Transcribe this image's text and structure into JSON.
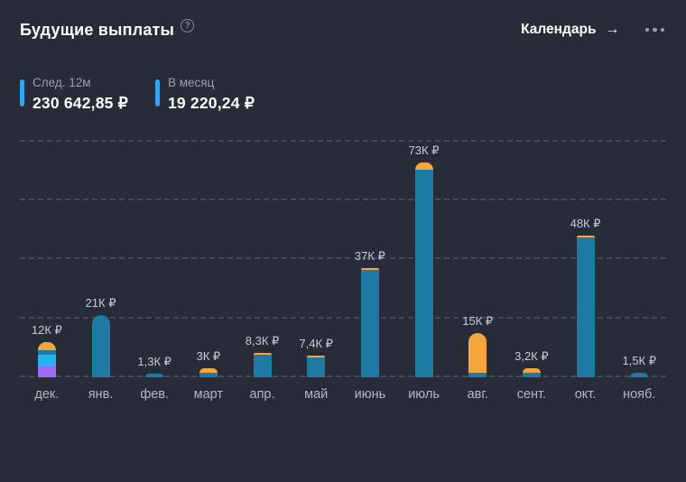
{
  "header": {
    "title": "Будущие выплаты",
    "calendar_label": "Календарь",
    "icons": {
      "help": "?",
      "arrow": "→",
      "more": "ellipsis"
    }
  },
  "stats": [
    {
      "label": "След. 12м",
      "value": "230 642,85 ₽"
    },
    {
      "label": "В месяц",
      "value": "19 220,24 ₽"
    }
  ],
  "colors": {
    "background": "#282b38",
    "stat_marker": "#38a3ea",
    "bar_teal": "#1e7aa3",
    "bar_orange": "#f7a63c",
    "bar_cyan": "#26b3f0",
    "bar_purple": "#9b6bf3",
    "gridline": "#454a58"
  },
  "chart_data": {
    "type": "bar",
    "stacked": true,
    "currency": "₽",
    "ymax": 80000,
    "grid": true,
    "gridline_values": [
      0,
      20000,
      40000,
      60000,
      80000
    ],
    "categories": [
      "дек.",
      "янв.",
      "фев.",
      "март",
      "апр.",
      "май",
      "июнь",
      "июль",
      "авг.",
      "сент.",
      "окт.",
      "нояб."
    ],
    "bars": [
      {
        "month": "дек.",
        "label": "12К ₽",
        "total": 12000,
        "segments": [
          {
            "color": "#9b6bf3",
            "value": 3700
          },
          {
            "color": "#26b3f0",
            "value": 4000
          },
          {
            "color": "#1e7aa3",
            "value": 1500
          },
          {
            "color": "#f7a63c",
            "value": 2800
          }
        ]
      },
      {
        "month": "янв.",
        "label": "21К ₽",
        "total": 21000,
        "segments": [
          {
            "color": "#1e7aa3",
            "value": 21000
          }
        ]
      },
      {
        "month": "фев.",
        "label": "1,3К ₽",
        "total": 1300,
        "segments": [
          {
            "color": "#1e7aa3",
            "value": 1300
          }
        ]
      },
      {
        "month": "март",
        "label": "3К ₽",
        "total": 3000,
        "segments": [
          {
            "color": "#1e7aa3",
            "value": 1600
          },
          {
            "color": "#f7a63c",
            "value": 1400
          }
        ]
      },
      {
        "month": "апр.",
        "label": "8,3К ₽",
        "total": 8300,
        "segments": [
          {
            "color": "#1e7aa3",
            "value": 7700
          },
          {
            "color": "#f7a63c",
            "value": 600
          }
        ]
      },
      {
        "month": "май",
        "label": "7,4К ₽",
        "total": 7400,
        "segments": [
          {
            "color": "#1e7aa3",
            "value": 6800
          },
          {
            "color": "#f7a63c",
            "value": 600
          }
        ]
      },
      {
        "month": "июнь",
        "label": "37К ₽",
        "total": 37000,
        "segments": [
          {
            "color": "#1e7aa3",
            "value": 36400
          },
          {
            "color": "#f7a63c",
            "value": 600
          }
        ]
      },
      {
        "month": "июль",
        "label": "73К ₽",
        "total": 73000,
        "segments": [
          {
            "color": "#1e7aa3",
            "value": 70500
          },
          {
            "color": "#f7a63c",
            "value": 2500
          }
        ]
      },
      {
        "month": "авг.",
        "label": "15К ₽",
        "total": 15000,
        "segments": [
          {
            "color": "#1e7aa3",
            "value": 1600
          },
          {
            "color": "#f7a63c",
            "value": 13400
          }
        ]
      },
      {
        "month": "сент.",
        "label": "3,2К ₽",
        "total": 3200,
        "segments": [
          {
            "color": "#1e7aa3",
            "value": 1600
          },
          {
            "color": "#f7a63c",
            "value": 1600
          }
        ]
      },
      {
        "month": "окт.",
        "label": "48К ₽",
        "total": 48000,
        "segments": [
          {
            "color": "#1e7aa3",
            "value": 47500
          },
          {
            "color": "#f7a63c",
            "value": 500
          }
        ]
      },
      {
        "month": "нояб.",
        "label": "1,5К ₽",
        "total": 1500,
        "segments": [
          {
            "color": "#1e7aa3",
            "value": 1500
          }
        ]
      }
    ]
  }
}
